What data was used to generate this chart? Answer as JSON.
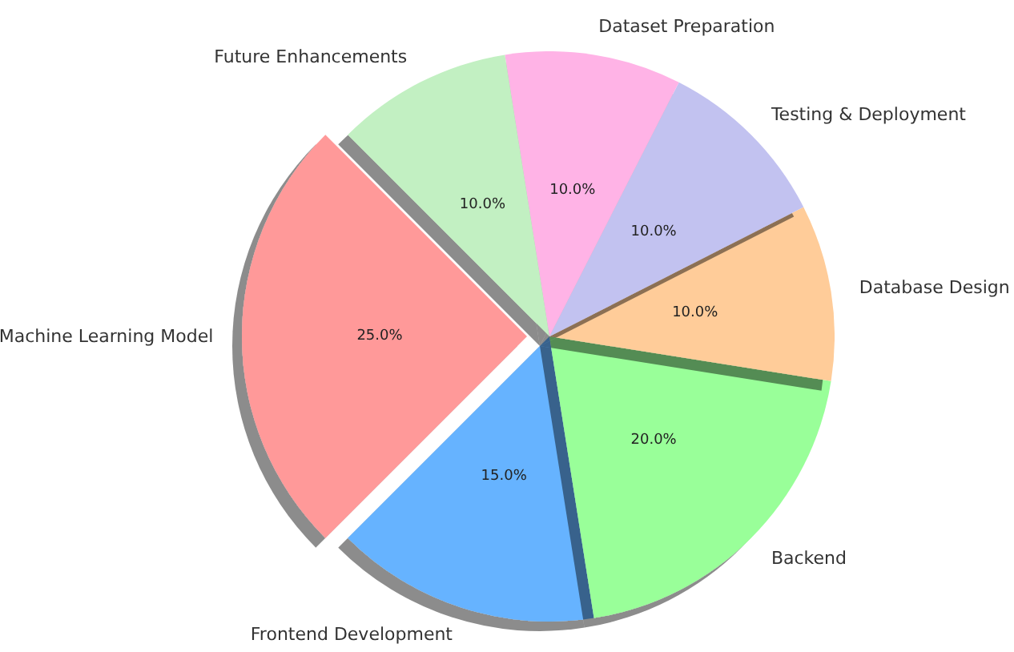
{
  "chart_data": {
    "type": "pie",
    "categories": [
      "Machine Learning Model",
      "Frontend Development",
      "Backend",
      "Database Design",
      "Testing & Deployment",
      "Dataset Preparation",
      "Future Enhancements"
    ],
    "values": [
      25,
      15,
      20,
      10,
      10,
      10,
      10
    ],
    "value_labels": [
      "25.0%",
      "15.0%",
      "20.0%",
      "10.0%",
      "10.0%",
      "10.0%",
      "10.0%"
    ],
    "colors": [
      "#ff9999",
      "#66b3ff",
      "#99ff99",
      "#ffcc99",
      "#c2c2f0",
      "#ffb3e6",
      "#c2f0c2"
    ],
    "legend": false
  }
}
